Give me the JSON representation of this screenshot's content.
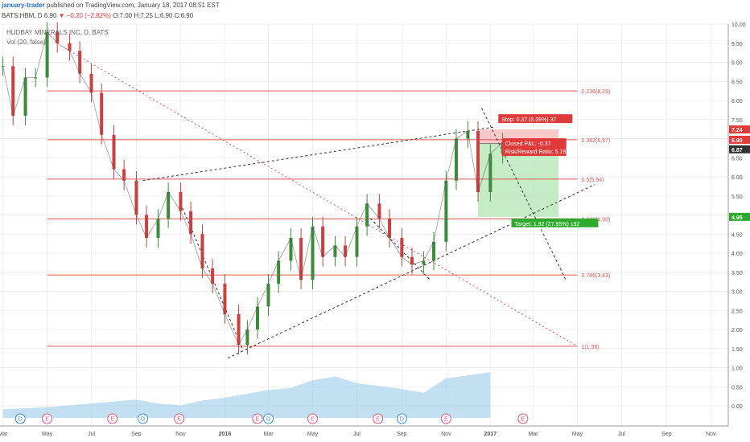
{
  "header": {
    "author": "january-trader",
    "published": "published on TradingView.com, January 18, 2017 08:51 EST",
    "ticker": "BATS:HBM, D",
    "last": "6.90",
    "change": "▼ −0.20 (−2.82%)",
    "ohlc": "O:7.00 H:7.25 L:6.90 C:6.90"
  },
  "legend": {
    "symbol": "HUDBAY MINERALS INC, D, BATS",
    "volume": "Vol (20, false)"
  },
  "colors": {
    "up": "#3d8a3d",
    "down": "#c94040",
    "fib": "#e05555",
    "stop_zone": "#f7b6b6",
    "target_zone": "#b3e6b3",
    "volume": "#8fc7e8"
  },
  "chart_data": {
    "type": "line",
    "title": "HUDBAY MINERALS INC, D, BATS",
    "y_axis_ticks": [
      "10.00",
      "9.50",
      "9.00",
      "8.50",
      "8.00",
      "7.50",
      "7.00",
      "6.50",
      "6.00",
      "5.50",
      "5.00",
      "4.50",
      "4.00",
      "3.50",
      "3.00",
      "2.50",
      "2.00",
      "1.50",
      "1.00",
      "0.50",
      "0.00"
    ],
    "x_axis_ticks": [
      "Mar",
      "May",
      "Jul",
      "Sep",
      "Nov",
      "2016",
      "Mar",
      "May",
      "Jul",
      "Sep",
      "Nov",
      "2017",
      "Mar",
      "May",
      "Jul",
      "Sep",
      "Nov"
    ],
    "ylim": [
      0,
      10
    ],
    "series": [
      {
        "name": "",
        "x": [
          "2015-03-01",
          "2015-03-15",
          "2015-04-01",
          "2015-04-15",
          "2015-05-01",
          "2015-05-15",
          "2015-06-01",
          "2015-06-15",
          "2015-07-01",
          "2015-07-15",
          "2015-08-01",
          "2015-08-15",
          "2015-09-01",
          "2015-09-15",
          "2015-10-01",
          "2015-10-15",
          "2015-11-01",
          "2015-11-15",
          "2015-12-01",
          "2015-12-15",
          "2016-01-01",
          "2016-01-20",
          "2016-02-01",
          "2016-02-15",
          "2016-03-01",
          "2016-03-15",
          "2016-04-01",
          "2016-04-15",
          "2016-05-01",
          "2016-05-15",
          "2016-06-01",
          "2016-06-15",
          "2016-07-01",
          "2016-07-15",
          "2016-08-01",
          "2016-08-15",
          "2016-09-01",
          "2016-09-15",
          "2016-10-01",
          "2016-10-15",
          "2016-11-01",
          "2016-11-15",
          "2016-12-01",
          "2016-12-15",
          "2017-01-01",
          "2017-01-18"
        ],
        "values": [
          8.9,
          7.6,
          8.6,
          8.6,
          9.8,
          9.5,
          9.3,
          8.7,
          8.2,
          7.1,
          6.2,
          5.9,
          5.0,
          4.4,
          4.9,
          5.6,
          5.1,
          4.5,
          3.6,
          3.2,
          2.4,
          1.6,
          2.0,
          2.6,
          3.2,
          3.8,
          4.4,
          3.3,
          4.7,
          3.9,
          4.2,
          3.9,
          4.7,
          5.3,
          4.9,
          4.4,
          3.9,
          3.7,
          3.8,
          4.3,
          5.9,
          7.0,
          7.2,
          5.6,
          6.6,
          6.9
        ]
      }
    ],
    "volume": {
      "name": "Vol (20, false)",
      "x": [
        "2015-03-01",
        "2015-04-01",
        "2015-05-01",
        "2015-06-01",
        "2015-07-01",
        "2015-08-01",
        "2015-09-01",
        "2015-10-01",
        "2015-11-01",
        "2015-12-01",
        "2016-01-01",
        "2016-02-01",
        "2016-03-01",
        "2016-04-01",
        "2016-05-01",
        "2016-06-01",
        "2016-07-01",
        "2016-08-01",
        "2016-09-01",
        "2016-10-01",
        "2016-11-01",
        "2016-12-01",
        "2017-01-01"
      ],
      "values": [
        0.18,
        0.2,
        0.22,
        0.26,
        0.3,
        0.34,
        0.38,
        0.3,
        0.26,
        0.36,
        0.42,
        0.5,
        0.58,
        0.62,
        0.78,
        0.86,
        0.72,
        0.66,
        0.6,
        0.52,
        0.82,
        0.88,
        0.95
      ]
    },
    "fib_levels": [
      {
        "label": "0.236(8.25)",
        "value": 8.25
      },
      {
        "label": "0.382(6.97)",
        "value": 6.97
      },
      {
        "label": "0.5(5.94)",
        "value": 5.94
      },
      {
        "label": "0.618(4.90)",
        "value": 4.9
      },
      {
        "label": "0.786(3.43)",
        "value": 3.43
      },
      {
        "label": "1(1.56)",
        "value": 1.56
      }
    ],
    "price_tags": [
      {
        "label": "7.24",
        "value": 7.24,
        "color": "#e03a3a"
      },
      {
        "label": "6.90",
        "value": 6.97,
        "color": "#e03a3a"
      },
      {
        "label": "6.87",
        "value": 6.72,
        "color": "#333333"
      },
      {
        "label": "4.95",
        "value": 4.95,
        "color": "#2eaa2e"
      }
    ],
    "position": {
      "entry": 6.87,
      "stop": 7.24,
      "target": 4.95,
      "start": "2016-12-15",
      "end": "2017-04-05",
      "stop_label": "Stop: 0.37 (5.39%) 37",
      "closed_label": "Closed P&L: -0.37",
      "ratio_label": "Risk/Reward Ratio: 5.19",
      "target_label": "Target: 1.92 (27.95%) 192"
    },
    "trendlines": [
      {
        "x1": "2015-06-01",
        "y1": 9.3,
        "x2": "2017-05-01",
        "y2": 1.56,
        "style": "dotted-red"
      },
      {
        "x1": "2015-09-10",
        "y1": 5.9,
        "x2": "2017-01-05",
        "y2": 7.3,
        "style": "dashed"
      },
      {
        "x1": "2016-01-05",
        "y1": 1.25,
        "x2": "2017-05-25",
        "y2": 5.8,
        "style": "dashed"
      },
      {
        "x1": "2015-11-01",
        "y1": 5.3,
        "x2": "2016-01-25",
        "y2": 1.5,
        "style": "dashed"
      },
      {
        "x1": "2016-07-15",
        "y1": 5.0,
        "x2": "2016-10-10",
        "y2": 3.3,
        "style": "dashed"
      },
      {
        "x1": "2016-12-20",
        "y1": 7.8,
        "x2": "2017-04-15",
        "y2": 3.3,
        "style": "dashed"
      }
    ],
    "events": [
      {
        "letter": "D",
        "x": "2015-03-25",
        "color": "#3a8fd8"
      },
      {
        "letter": "E",
        "x": "2015-05-01",
        "color": "#e05577"
      },
      {
        "letter": "E",
        "x": "2015-07-30",
        "color": "#e05577"
      },
      {
        "letter": "D",
        "x": "2015-09-10",
        "color": "#3a8fd8"
      },
      {
        "letter": "E",
        "x": "2015-10-30",
        "color": "#e05577"
      },
      {
        "letter": "E",
        "x": "2016-02-15",
        "color": "#e05577"
      },
      {
        "letter": "D",
        "x": "2016-03-01",
        "color": "#3a8fd8"
      },
      {
        "letter": "E",
        "x": "2016-05-01",
        "color": "#e05577"
      },
      {
        "letter": "E",
        "x": "2016-07-30",
        "color": "#e05577"
      },
      {
        "letter": "D",
        "x": "2016-09-01",
        "color": "#3a8fd8"
      },
      {
        "letter": "E",
        "x": "2016-11-01",
        "color": "#e05577"
      },
      {
        "letter": "E",
        "x": "2017-02-15",
        "color": "#e05577"
      }
    ]
  }
}
